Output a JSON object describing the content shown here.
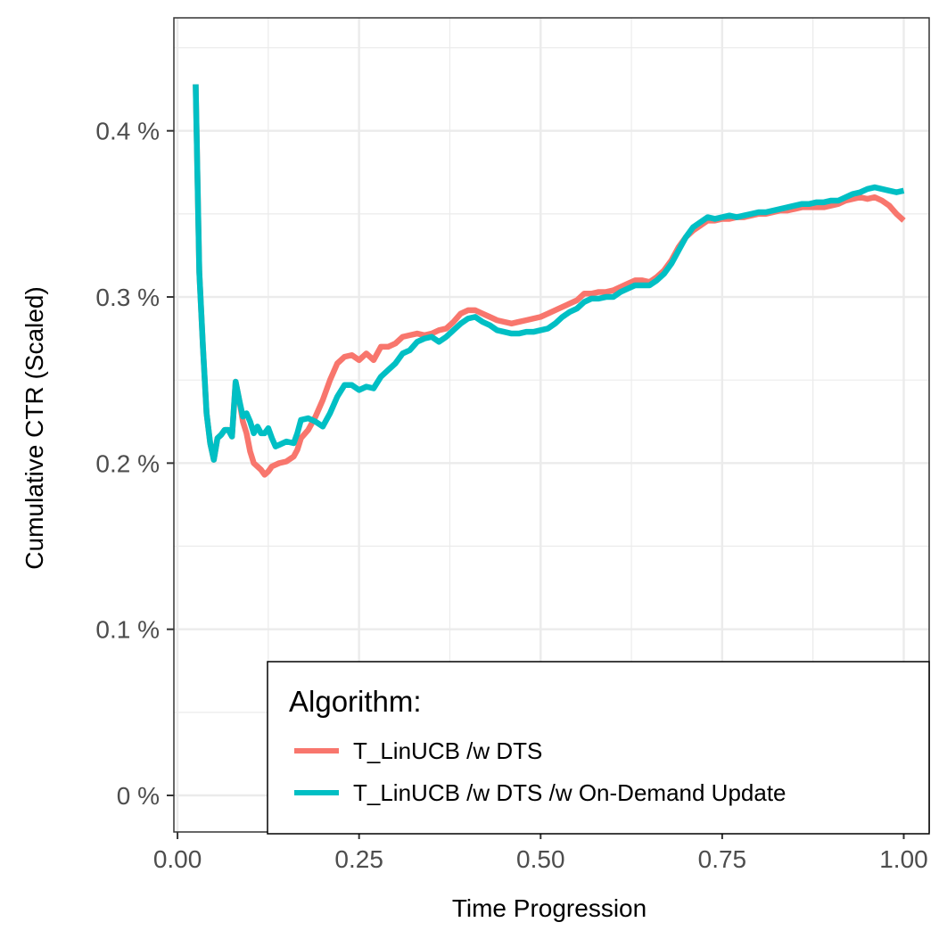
{
  "chart_data": {
    "type": "line",
    "title": "",
    "xlabel": "Time Progression",
    "ylabel": "Cumulative CTR (Scaled)",
    "xlim": [
      -0.005,
      1.035
    ],
    "ylim": [
      -0.00022,
      0.00468
    ],
    "x_ticks": [
      0,
      0.25,
      0.5,
      0.75,
      1
    ],
    "x_tick_labels": [
      "0.00",
      "0.25",
      "0.50",
      "0.75",
      "1.00"
    ],
    "y_ticks": [
      0,
      0.001,
      0.002,
      0.003,
      0.004
    ],
    "y_tick_labels": [
      "0 %",
      "0.1 %",
      "0.2 %",
      "0.3 %",
      "0.4 %"
    ],
    "grid": true,
    "legend": {
      "title": "Algorithm:",
      "position": "bottom-right"
    },
    "series": [
      {
        "name": "T_LinUCB /w DTS",
        "color": "#F8766D",
        "points": [
          [
            0.025,
            0.00428
          ],
          [
            0.03,
            0.00315
          ],
          [
            0.035,
            0.0027
          ],
          [
            0.04,
            0.0023
          ],
          [
            0.045,
            0.00212
          ],
          [
            0.05,
            0.00202
          ],
          [
            0.055,
            0.00215
          ],
          [
            0.06,
            0.00217
          ],
          [
            0.065,
            0.0022
          ],
          [
            0.07,
            0.0022
          ],
          [
            0.075,
            0.00216
          ],
          [
            0.08,
            0.00249
          ],
          [
            0.085,
            0.00238
          ],
          [
            0.09,
            0.00225
          ],
          [
            0.095,
            0.00218
          ],
          [
            0.1,
            0.00207
          ],
          [
            0.105,
            0.002
          ],
          [
            0.11,
            0.00198
          ],
          [
            0.115,
            0.00196
          ],
          [
            0.12,
            0.00193
          ],
          [
            0.125,
            0.00195
          ],
          [
            0.13,
            0.00198
          ],
          [
            0.14,
            0.002
          ],
          [
            0.15,
            0.00201
          ],
          [
            0.16,
            0.00204
          ],
          [
            0.165,
            0.00208
          ],
          [
            0.17,
            0.00215
          ],
          [
            0.18,
            0.0022
          ],
          [
            0.19,
            0.00228
          ],
          [
            0.2,
            0.00238
          ],
          [
            0.21,
            0.0025
          ],
          [
            0.22,
            0.0026
          ],
          [
            0.23,
            0.00264
          ],
          [
            0.24,
            0.00265
          ],
          [
            0.25,
            0.00262
          ],
          [
            0.26,
            0.00266
          ],
          [
            0.27,
            0.00262
          ],
          [
            0.28,
            0.0027
          ],
          [
            0.29,
            0.0027
          ],
          [
            0.3,
            0.00272
          ],
          [
            0.31,
            0.00276
          ],
          [
            0.32,
            0.00277
          ],
          [
            0.33,
            0.00278
          ],
          [
            0.34,
            0.00277
          ],
          [
            0.35,
            0.00278
          ],
          [
            0.36,
            0.0028
          ],
          [
            0.37,
            0.00281
          ],
          [
            0.38,
            0.00285
          ],
          [
            0.39,
            0.0029
          ],
          [
            0.4,
            0.00292
          ],
          [
            0.41,
            0.00292
          ],
          [
            0.42,
            0.0029
          ],
          [
            0.43,
            0.00288
          ],
          [
            0.44,
            0.00286
          ],
          [
            0.45,
            0.00285
          ],
          [
            0.46,
            0.00284
          ],
          [
            0.47,
            0.00285
          ],
          [
            0.48,
            0.00286
          ],
          [
            0.49,
            0.00287
          ],
          [
            0.5,
            0.00288
          ],
          [
            0.51,
            0.0029
          ],
          [
            0.52,
            0.00292
          ],
          [
            0.53,
            0.00294
          ],
          [
            0.54,
            0.00296
          ],
          [
            0.55,
            0.00298
          ],
          [
            0.56,
            0.00302
          ],
          [
            0.57,
            0.00302
          ],
          [
            0.58,
            0.00303
          ],
          [
            0.59,
            0.00303
          ],
          [
            0.6,
            0.00304
          ],
          [
            0.61,
            0.00306
          ],
          [
            0.62,
            0.00308
          ],
          [
            0.63,
            0.0031
          ],
          [
            0.64,
            0.0031
          ],
          [
            0.65,
            0.00309
          ],
          [
            0.66,
            0.00312
          ],
          [
            0.67,
            0.00316
          ],
          [
            0.68,
            0.00322
          ],
          [
            0.69,
            0.0033
          ],
          [
            0.7,
            0.00336
          ],
          [
            0.71,
            0.0034
          ],
          [
            0.72,
            0.00343
          ],
          [
            0.73,
            0.00346
          ],
          [
            0.74,
            0.00346
          ],
          [
            0.75,
            0.00347
          ],
          [
            0.76,
            0.00347
          ],
          [
            0.77,
            0.00348
          ],
          [
            0.78,
            0.00348
          ],
          [
            0.79,
            0.00349
          ],
          [
            0.8,
            0.0035
          ],
          [
            0.81,
            0.0035
          ],
          [
            0.82,
            0.00351
          ],
          [
            0.83,
            0.00352
          ],
          [
            0.84,
            0.00352
          ],
          [
            0.85,
            0.00353
          ],
          [
            0.86,
            0.00354
          ],
          [
            0.87,
            0.00354
          ],
          [
            0.88,
            0.00354
          ],
          [
            0.89,
            0.00354
          ],
          [
            0.9,
            0.00355
          ],
          [
            0.91,
            0.00356
          ],
          [
            0.92,
            0.00358
          ],
          [
            0.93,
            0.00359
          ],
          [
            0.94,
            0.0036
          ],
          [
            0.95,
            0.00359
          ],
          [
            0.96,
            0.0036
          ],
          [
            0.97,
            0.00358
          ],
          [
            0.98,
            0.00355
          ],
          [
            0.99,
            0.0035
          ],
          [
            1.0,
            0.00346
          ]
        ]
      },
      {
        "name": "T_LinUCB /w DTS /w On-Demand Update",
        "color": "#00BFC4",
        "points": [
          [
            0.025,
            0.00428
          ],
          [
            0.03,
            0.00315
          ],
          [
            0.035,
            0.0027
          ],
          [
            0.04,
            0.0023
          ],
          [
            0.045,
            0.00212
          ],
          [
            0.05,
            0.00202
          ],
          [
            0.055,
            0.00215
          ],
          [
            0.06,
            0.00217
          ],
          [
            0.065,
            0.0022
          ],
          [
            0.07,
            0.0022
          ],
          [
            0.075,
            0.00216
          ],
          [
            0.08,
            0.00249
          ],
          [
            0.085,
            0.00238
          ],
          [
            0.09,
            0.00228
          ],
          [
            0.095,
            0.0023
          ],
          [
            0.1,
            0.00225
          ],
          [
            0.105,
            0.00218
          ],
          [
            0.11,
            0.00222
          ],
          [
            0.115,
            0.00218
          ],
          [
            0.12,
            0.00218
          ],
          [
            0.125,
            0.00221
          ],
          [
            0.13,
            0.00215
          ],
          [
            0.135,
            0.0021
          ],
          [
            0.14,
            0.00211
          ],
          [
            0.15,
            0.00213
          ],
          [
            0.16,
            0.00212
          ],
          [
            0.165,
            0.00218
          ],
          [
            0.17,
            0.00226
          ],
          [
            0.18,
            0.00227
          ],
          [
            0.19,
            0.00225
          ],
          [
            0.2,
            0.00222
          ],
          [
            0.21,
            0.0023
          ],
          [
            0.22,
            0.0024
          ],
          [
            0.23,
            0.00247
          ],
          [
            0.24,
            0.00247
          ],
          [
            0.25,
            0.00244
          ],
          [
            0.26,
            0.00246
          ],
          [
            0.27,
            0.00245
          ],
          [
            0.28,
            0.00252
          ],
          [
            0.29,
            0.00256
          ],
          [
            0.3,
            0.0026
          ],
          [
            0.31,
            0.00266
          ],
          [
            0.32,
            0.00268
          ],
          [
            0.33,
            0.00273
          ],
          [
            0.34,
            0.00275
          ],
          [
            0.35,
            0.00276
          ],
          [
            0.36,
            0.00273
          ],
          [
            0.37,
            0.00276
          ],
          [
            0.38,
            0.0028
          ],
          [
            0.39,
            0.00284
          ],
          [
            0.4,
            0.00287
          ],
          [
            0.41,
            0.00288
          ],
          [
            0.42,
            0.00285
          ],
          [
            0.43,
            0.00283
          ],
          [
            0.44,
            0.0028
          ],
          [
            0.45,
            0.00279
          ],
          [
            0.46,
            0.00278
          ],
          [
            0.47,
            0.00278
          ],
          [
            0.48,
            0.00279
          ],
          [
            0.49,
            0.00279
          ],
          [
            0.5,
            0.0028
          ],
          [
            0.51,
            0.00281
          ],
          [
            0.52,
            0.00284
          ],
          [
            0.53,
            0.00288
          ],
          [
            0.54,
            0.00291
          ],
          [
            0.55,
            0.00293
          ],
          [
            0.56,
            0.00297
          ],
          [
            0.57,
            0.00299
          ],
          [
            0.58,
            0.00299
          ],
          [
            0.59,
            0.003
          ],
          [
            0.6,
            0.003
          ],
          [
            0.61,
            0.00303
          ],
          [
            0.62,
            0.00305
          ],
          [
            0.63,
            0.00307
          ],
          [
            0.64,
            0.00307
          ],
          [
            0.65,
            0.00307
          ],
          [
            0.66,
            0.0031
          ],
          [
            0.67,
            0.00314
          ],
          [
            0.68,
            0.0032
          ],
          [
            0.69,
            0.00328
          ],
          [
            0.7,
            0.00336
          ],
          [
            0.71,
            0.00342
          ],
          [
            0.72,
            0.00345
          ],
          [
            0.73,
            0.00348
          ],
          [
            0.74,
            0.00347
          ],
          [
            0.75,
            0.00348
          ],
          [
            0.76,
            0.00349
          ],
          [
            0.77,
            0.00348
          ],
          [
            0.78,
            0.00349
          ],
          [
            0.79,
            0.0035
          ],
          [
            0.8,
            0.00351
          ],
          [
            0.81,
            0.00351
          ],
          [
            0.82,
            0.00352
          ],
          [
            0.83,
            0.00353
          ],
          [
            0.84,
            0.00354
          ],
          [
            0.85,
            0.00355
          ],
          [
            0.86,
            0.00356
          ],
          [
            0.87,
            0.00356
          ],
          [
            0.88,
            0.00357
          ],
          [
            0.89,
            0.00357
          ],
          [
            0.9,
            0.00358
          ],
          [
            0.91,
            0.00358
          ],
          [
            0.92,
            0.0036
          ],
          [
            0.93,
            0.00362
          ],
          [
            0.94,
            0.00363
          ],
          [
            0.95,
            0.00365
          ],
          [
            0.96,
            0.00366
          ],
          [
            0.97,
            0.00365
          ],
          [
            0.98,
            0.00364
          ],
          [
            0.99,
            0.00363
          ],
          [
            1.0,
            0.00364
          ]
        ]
      }
    ]
  }
}
